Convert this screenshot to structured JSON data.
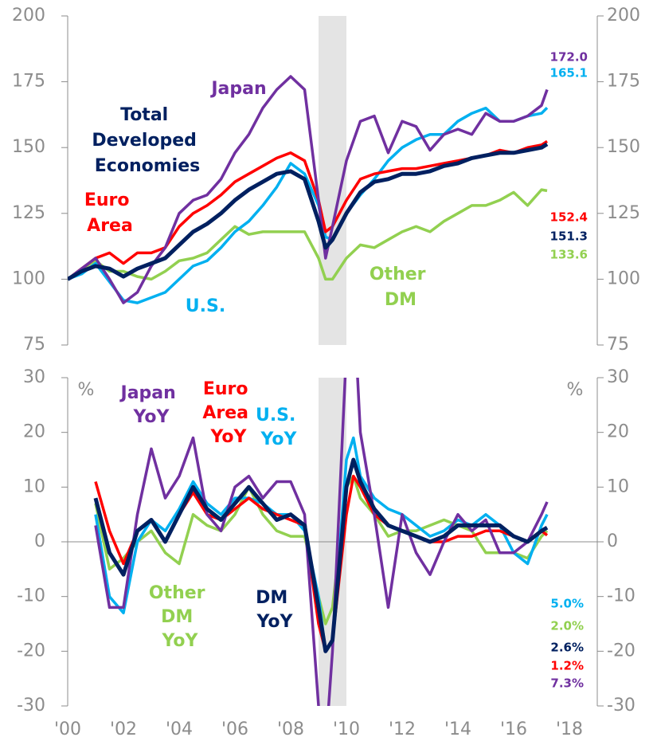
{
  "chart_data": [
    {
      "type": "line",
      "x": [
        2000,
        2000.5,
        2001,
        2001.5,
        2002,
        2002.5,
        2003,
        2003.5,
        2004,
        2004.5,
        2005,
        2005.5,
        2006,
        2006.5,
        2007,
        2007.5,
        2008,
        2008.5,
        2009,
        2009.25,
        2009.5,
        2010,
        2010.5,
        2011,
        2011.5,
        2012,
        2012.5,
        2013,
        2013.5,
        2014,
        2014.5,
        2015,
        2015.5,
        2016,
        2016.5,
        2017,
        2017.2
      ],
      "xlim": [
        2000,
        2018
      ],
      "ylim": [
        75,
        200
      ],
      "yticks": [
        75,
        100,
        125,
        150,
        175,
        200
      ],
      "shaded_range": [
        2009,
        2010
      ],
      "series": [
        {
          "name": "Japan",
          "color": "#7030a0",
          "end_label": "172.0",
          "values": [
            100,
            104,
            108,
            100,
            91,
            95,
            105,
            112,
            125,
            130,
            132,
            138,
            148,
            155,
            165,
            172,
            177,
            172,
            130,
            108,
            120,
            145,
            160,
            162,
            148,
            160,
            158,
            149,
            155,
            157,
            155,
            163,
            160,
            160,
            162,
            166,
            172.0
          ]
        },
        {
          "name": "U.S.",
          "color": "#00b0f0",
          "end_label": "165.1",
          "values": [
            100,
            102,
            106,
            99,
            92,
            91,
            93,
            95,
            100,
            105,
            107,
            112,
            118,
            122,
            128,
            135,
            144,
            140,
            128,
            116,
            115,
            125,
            132,
            138,
            145,
            150,
            153,
            155,
            155,
            160,
            163,
            165,
            160,
            160,
            162,
            163,
            165.1
          ]
        },
        {
          "name": "Euro Area",
          "color": "#ff0000",
          "end_label": "152.4",
          "values": [
            100,
            104,
            108,
            110,
            106,
            110,
            110,
            112,
            120,
            125,
            128,
            132,
            137,
            140,
            143,
            146,
            148,
            145,
            130,
            118,
            120,
            130,
            138,
            140,
            141,
            142,
            142,
            143,
            144,
            145,
            146,
            147,
            149,
            148,
            150,
            151,
            152.4
          ]
        },
        {
          "name": "Total Developed Economies",
          "color": "#002060",
          "end_label": "151.3",
          "values": [
            100,
            103,
            105,
            104,
            101,
            104,
            106,
            108,
            113,
            118,
            121,
            125,
            130,
            134,
            137,
            140,
            141,
            138,
            122,
            112,
            115,
            125,
            133,
            137,
            138,
            140,
            140,
            141,
            143,
            144,
            146,
            147,
            148,
            148,
            149,
            150,
            151.3
          ]
        },
        {
          "name": "Other DM",
          "color": "#92d050",
          "end_label": "133.6",
          "values": [
            100,
            104,
            107,
            103,
            103,
            101,
            100,
            103,
            107,
            108,
            110,
            115,
            120,
            117,
            118,
            118,
            118,
            118,
            108,
            100,
            100,
            108,
            113,
            112,
            115,
            118,
            120,
            118,
            122,
            125,
            128,
            128,
            130,
            133,
            128,
            134,
            133.6
          ]
        }
      ]
    },
    {
      "type": "line",
      "unit_label": "%",
      "x": [
        2001,
        2001.5,
        2002,
        2002.5,
        2003,
        2003.5,
        2004,
        2004.5,
        2005,
        2005.5,
        2006,
        2006.5,
        2007,
        2007.5,
        2008,
        2008.5,
        2009,
        2009.25,
        2009.5,
        2010,
        2010.25,
        2010.5,
        2011,
        2011.5,
        2012,
        2012.5,
        2013,
        2013.5,
        2014,
        2014.5,
        2015,
        2015.5,
        2016,
        2016.5,
        2017,
        2017.2
      ],
      "xlim": [
        2000,
        2018
      ],
      "ylim": [
        -30,
        30
      ],
      "yticks": [
        -30,
        -20,
        -10,
        0,
        10,
        20,
        30
      ],
      "xticks": [
        {
          "value": 2000,
          "label": "'00"
        },
        {
          "value": 2002,
          "label": "'02"
        },
        {
          "value": 2004,
          "label": "'04"
        },
        {
          "value": 2006,
          "label": "'06"
        },
        {
          "value": 2008,
          "label": "'08"
        },
        {
          "value": 2010,
          "label": "'10"
        },
        {
          "value": 2012,
          "label": "'12"
        },
        {
          "value": 2014,
          "label": "'14"
        },
        {
          "value": 2016,
          "label": "'16"
        },
        {
          "value": 2018,
          "label": "'18"
        }
      ],
      "shaded_range": [
        2009,
        2010
      ],
      "series": [
        {
          "name": "Japan YoY",
          "color": "#7030a0",
          "end_label": "7.3%",
          "values": [
            3,
            -12,
            -12,
            5,
            17,
            8,
            12,
            19,
            5,
            2,
            10,
            12,
            8,
            11,
            11,
            5,
            -30,
            -38,
            -20,
            35,
            45,
            20,
            5,
            -12,
            5,
            -2,
            -6,
            0,
            5,
            2,
            4,
            -2,
            -2,
            0,
            5,
            7.3
          ]
        },
        {
          "name": "U.S. YoY",
          "color": "#00b0f0",
          "end_label": "5.0%",
          "values": [
            5,
            -10,
            -13,
            0,
            4,
            2,
            6,
            11,
            7,
            5,
            8,
            8,
            7,
            5,
            5,
            2,
            -10,
            -20,
            -18,
            15,
            19,
            12,
            8,
            6,
            5,
            3,
            1,
            2,
            4,
            3,
            5,
            3,
            -2,
            -4,
            3,
            5.0
          ]
        },
        {
          "name": "Euro Area YoY",
          "color": "#ff0000",
          "end_label": "1.2%",
          "values": [
            11,
            2,
            -4,
            2,
            4,
            0,
            5,
            9,
            5,
            4,
            6,
            8,
            6,
            5,
            4,
            3,
            -15,
            -20,
            -18,
            5,
            12,
            10,
            5,
            3,
            2,
            1,
            0,
            0,
            1,
            1,
            2,
            2,
            1,
            0,
            2,
            1.2
          ]
        },
        {
          "name": "DM YoY",
          "color": "#002060",
          "end_label": "2.6%",
          "values": [
            8,
            -2,
            -6,
            2,
            4,
            0,
            5,
            10,
            6,
            4,
            7,
            10,
            7,
            4,
            5,
            3,
            -12,
            -20,
            -18,
            10,
            15,
            11,
            6,
            3,
            2,
            1,
            0,
            1,
            3,
            3,
            3,
            3,
            1,
            0,
            2,
            2.6
          ]
        },
        {
          "name": "Other DM YoY",
          "color": "#92d050",
          "end_label": "2.0%",
          "values": [
            7,
            -5,
            -3,
            0,
            2,
            -2,
            -4,
            5,
            3,
            2,
            5,
            10,
            5,
            2,
            1,
            1,
            -10,
            -15,
            -12,
            10,
            12,
            8,
            5,
            1,
            2,
            2,
            3,
            4,
            3,
            2,
            -2,
            -2,
            -2,
            -3,
            1,
            2.0
          ]
        }
      ]
    }
  ]
}
